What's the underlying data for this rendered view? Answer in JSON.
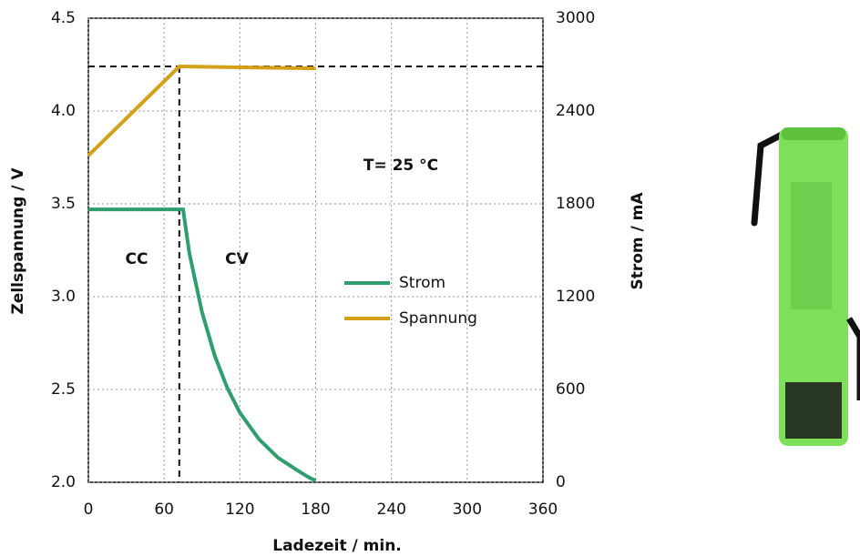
{
  "chart_data": {
    "type": "line",
    "xlabel": "Ladezeit / min.",
    "ylabel": "Zellspannung / V",
    "y2label": "Strom / mA",
    "annotations": [
      "CC",
      "CV",
      "T= 25 °C"
    ],
    "xlim": [
      0,
      360
    ],
    "xticks": [
      0,
      60,
      120,
      180,
      240,
      300,
      360
    ],
    "ylim": [
      2,
      4.5
    ],
    "yticks": [
      {
        "value": 2,
        "label": "2.0"
      },
      {
        "value": 2.5,
        "label": "2.5"
      },
      {
        "value": 3,
        "label": "3.0"
      },
      {
        "value": 3.5,
        "label": "3.5"
      },
      {
        "value": 4,
        "label": "4.0"
      },
      {
        "value": 4.5,
        "label": "4.5"
      }
    ],
    "y2lim": [
      0,
      3000
    ],
    "y2ticks": [
      0,
      600,
      1200,
      1800,
      2400,
      3000
    ],
    "grid": true,
    "hlines": [
      4.24
    ],
    "vlines": [
      72
    ],
    "series": [
      {
        "name": "Strom",
        "color": "#2e9e6e",
        "axis": "y2",
        "x": [
          0,
          72,
          75,
          80,
          90,
          100,
          110,
          120,
          135,
          150,
          165,
          175,
          180
        ],
        "values": [
          1764,
          1764,
          1764,
          1480,
          1100,
          820,
          610,
          450,
          280,
          160,
          80,
          30,
          10
        ]
      },
      {
        "name": "Spannung",
        "color": "#d4a017",
        "x": [
          0,
          72,
          180
        ],
        "values": [
          3.76,
          4.24,
          4.23
        ]
      }
    ]
  }
}
